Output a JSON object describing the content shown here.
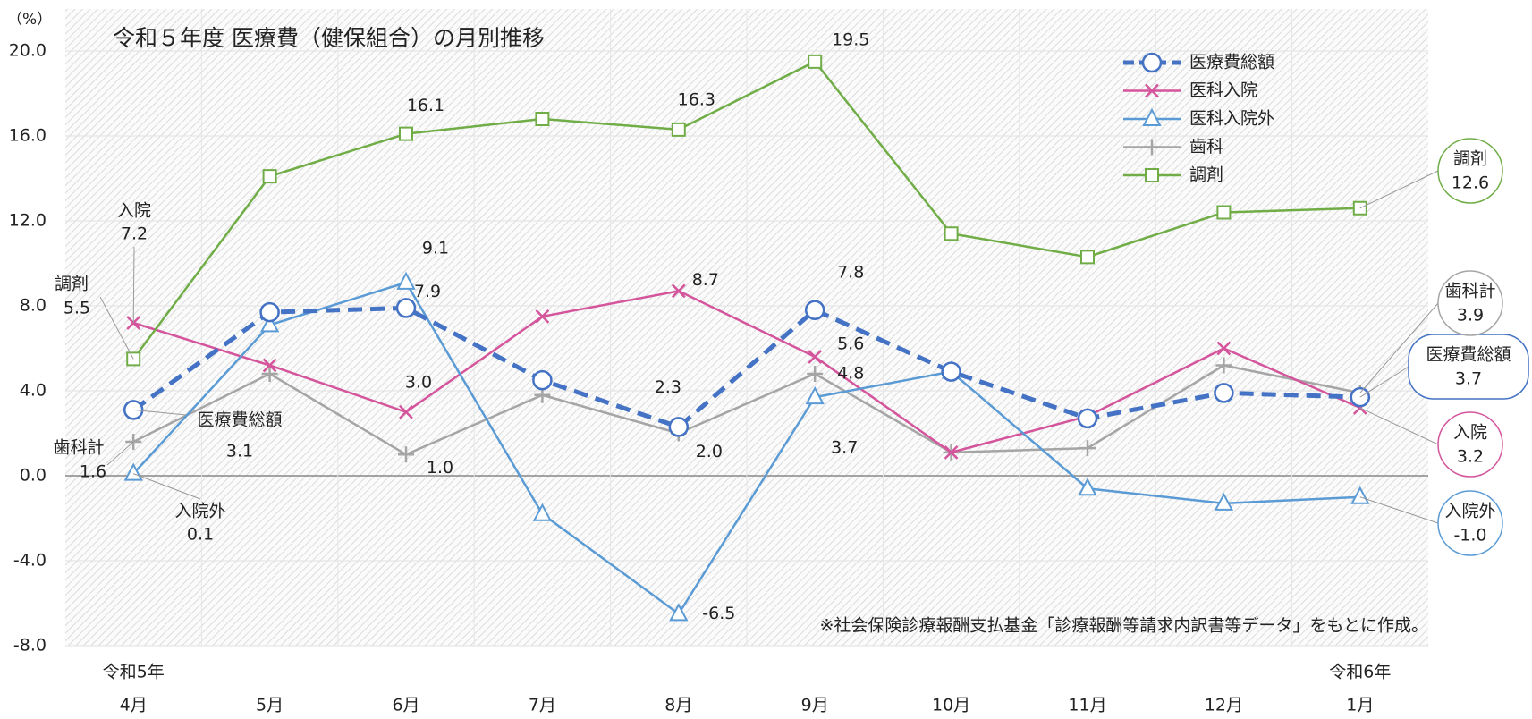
{
  "chart_data": {
    "type": "line",
    "title": "令和５年度 医療費（健保組合）の月別推移",
    "y_unit": "（%）",
    "note": "※社会保険診療報酬支払基金「診療報酬等請求内訳書等データ」をもとに作成。",
    "categories": [
      "4月",
      "5月",
      "6月",
      "7月",
      "8月",
      "9月",
      "10月",
      "11月",
      "12月",
      "1月"
    ],
    "year_labels": [
      "令和5年",
      null,
      null,
      null,
      null,
      null,
      null,
      null,
      null,
      "令和6年"
    ],
    "ylim": [
      -8,
      20
    ],
    "yticks": [
      {
        "value": -8,
        "label": "-8.0"
      },
      {
        "value": -4,
        "label": "-4.0"
      },
      {
        "value": 0,
        "label": "0.0"
      },
      {
        "value": 4,
        "label": "4.0"
      },
      {
        "value": 8,
        "label": "8.0"
      },
      {
        "value": 12,
        "label": "12.0"
      },
      {
        "value": 16,
        "label": "16.0"
      },
      {
        "value": 20,
        "label": "20.0"
      }
    ],
    "grid": true,
    "legend": "upper right",
    "series": [
      {
        "name": "医療費総額",
        "color": "#4472c4",
        "values": [
          3.1,
          7.7,
          7.9,
          4.5,
          2.3,
          7.8,
          4.9,
          2.7,
          3.9,
          3.7
        ],
        "value_labels": [
          "3.1",
          null,
          "7.9",
          null,
          "2.3",
          "7.8",
          null,
          null,
          null,
          "3.7"
        ],
        "start_label": "医療費総額",
        "end_label": "医療費総額"
      },
      {
        "name": "医科入院",
        "color": "#d4559c",
        "values": [
          7.2,
          5.2,
          3.0,
          7.5,
          8.7,
          5.6,
          1.1,
          2.8,
          6.0,
          3.2
        ],
        "value_labels": [
          "7.2",
          null,
          "3.0",
          null,
          "8.7",
          "5.6",
          null,
          null,
          null,
          "3.2"
        ],
        "start_label": "入院",
        "end_label": "入院"
      },
      {
        "name": "医科入院外",
        "color": "#5b9bd5",
        "values": [
          0.1,
          7.1,
          9.1,
          -1.8,
          -6.5,
          3.7,
          4.9,
          -0.6,
          -1.3,
          -1.0
        ],
        "value_labels": [
          "0.1",
          null,
          "9.1",
          null,
          "-6.5",
          "3.7",
          null,
          null,
          null,
          "-1.0"
        ],
        "start_label": "入院外",
        "end_label": "入院外"
      },
      {
        "name": "歯科",
        "color": "#a5a5a5",
        "values": [
          1.6,
          4.8,
          1.0,
          3.8,
          2.0,
          4.8,
          1.1,
          1.3,
          5.2,
          3.9
        ],
        "value_labels": [
          "1.6",
          null,
          "1.0",
          null,
          "2.0",
          "4.8",
          null,
          null,
          null,
          "3.9"
        ],
        "start_label": "歯科計",
        "end_label": "歯科計"
      },
      {
        "name": "調剤",
        "color": "#70ad47",
        "values": [
          5.5,
          14.1,
          16.1,
          16.8,
          16.3,
          19.5,
          11.4,
          10.3,
          12.4,
          12.6
        ],
        "value_labels": [
          "5.5",
          null,
          "16.1",
          null,
          "16.3",
          "19.5",
          null,
          null,
          null,
          "12.6"
        ],
        "start_label": "調剤",
        "end_label": "調剤"
      }
    ]
  }
}
